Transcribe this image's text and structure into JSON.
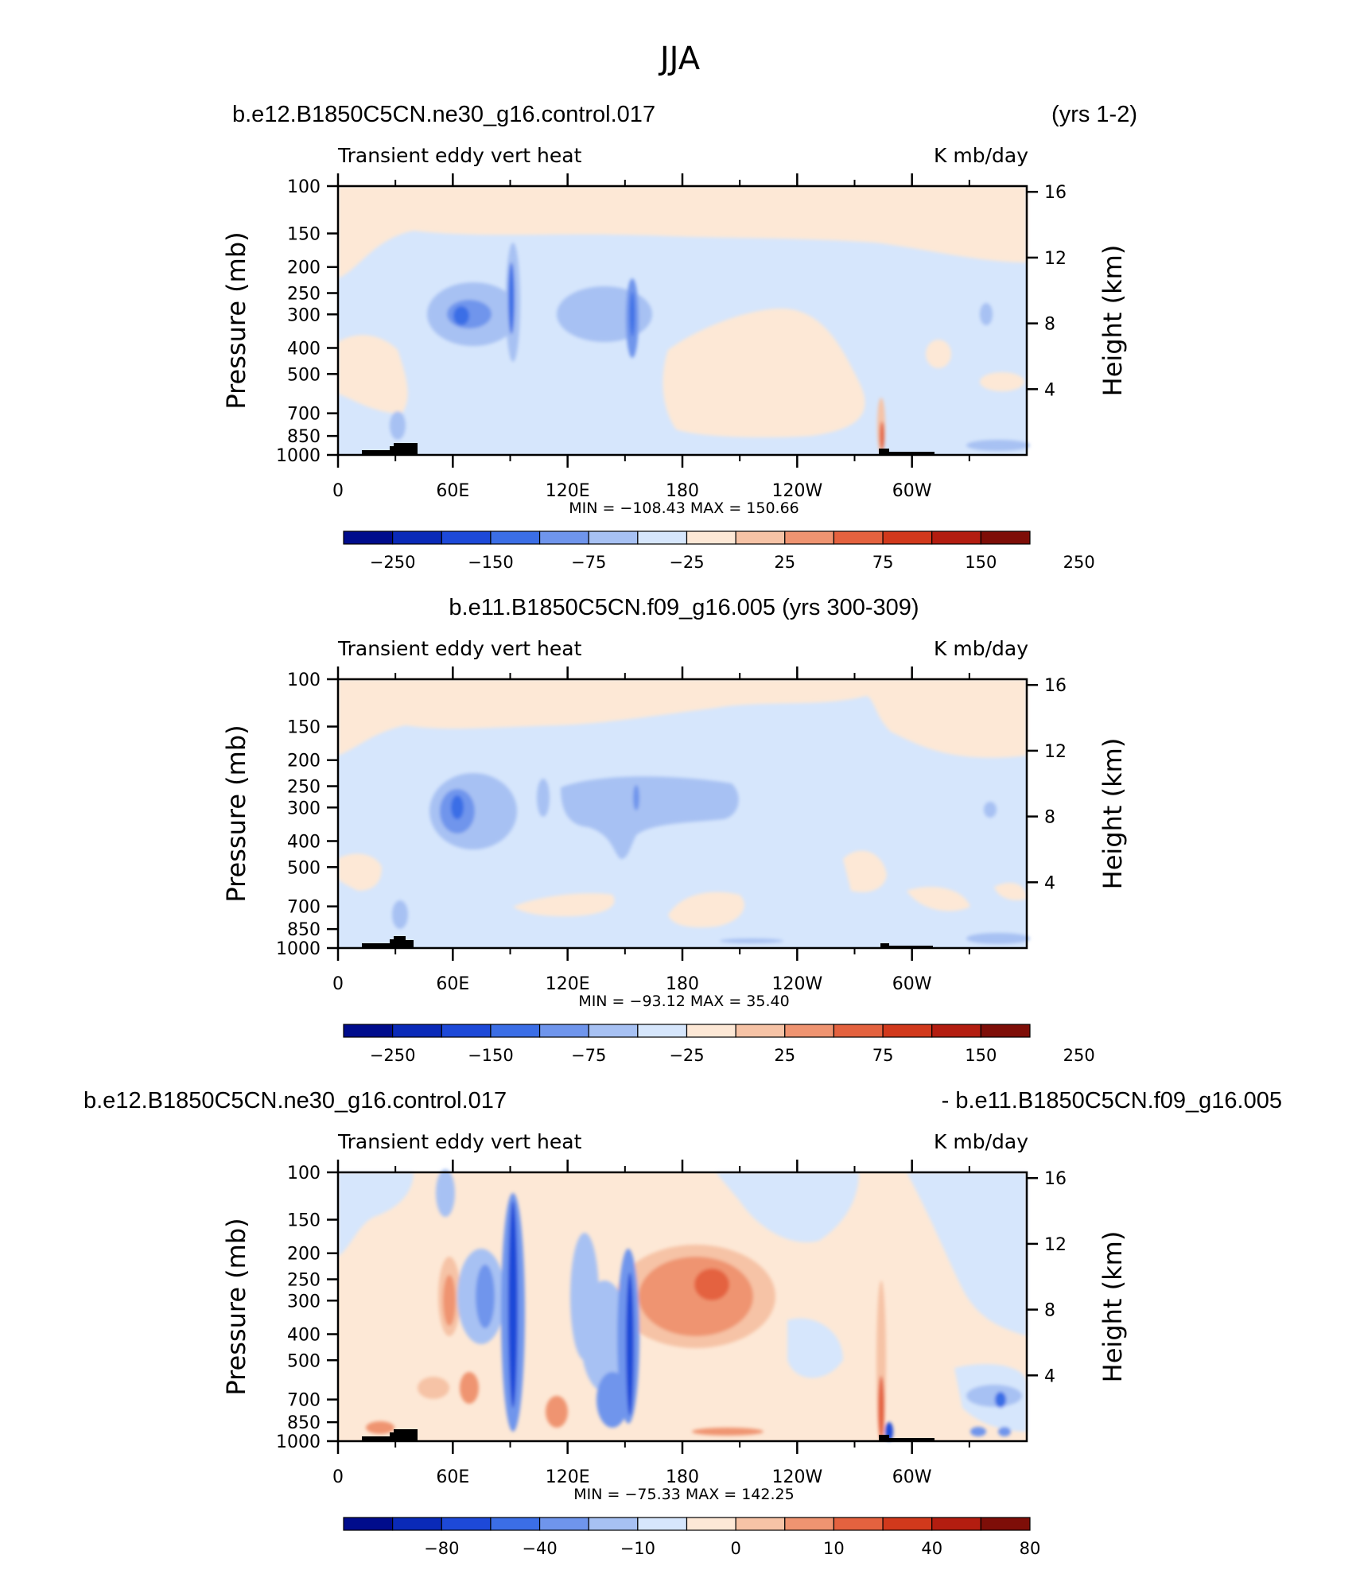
{
  "figure_title": "JJA",
  "colors": {
    "cbar": [
      "#000c8c",
      "#0a2ab8",
      "#1d49d8",
      "#3b6ee6",
      "#6f95ec",
      "#a7c1f3",
      "#d6e6fc",
      "#fde8d6",
      "#f6c3a6",
      "#ef9471",
      "#e4623f",
      "#d1391c",
      "#b31d10",
      "#7e0e08"
    ],
    "land": "#000000"
  },
  "chart_data": [
    {
      "type": "heatmap",
      "title_left": "b.e12.B1850C5CN.ne30_g16.control.017",
      "title_right": "(yrs 1-2)",
      "subtitle": "Transient eddy vert heat",
      "units": "K mb/day",
      "ylabel": "Pressure (mb)",
      "ylabel_right": "Height (km)",
      "xticks": [
        "0",
        "60E",
        "120E",
        "180",
        "120W",
        "60W"
      ],
      "yticks": [
        "100",
        "150",
        "200",
        "250",
        "300",
        "400",
        "500",
        "700",
        "850",
        "1000"
      ],
      "yticks_right": [
        "16",
        "12",
        "8",
        "4"
      ],
      "ylim": [
        1000,
        100
      ],
      "minmax": "MIN = −108.43   MAX = 150.66",
      "min": -108.43,
      "max": 150.66,
      "colorbar_labels": [
        "−250",
        "−150",
        "−75",
        "−25",
        "25",
        "75",
        "150",
        "250"
      ],
      "features": [
        {
          "lon": 70,
          "p": 300,
          "val": -108
        },
        {
          "lon": 90,
          "p": 300,
          "val": -80
        },
        {
          "lon": 150,
          "p": 300,
          "val": -60
        },
        {
          "lon": 290,
          "p": 850,
          "val": 150
        }
      ]
    },
    {
      "type": "heatmap",
      "title_left": "b.e11.B1850C5CN.f09_g16.005 (yrs 300-309)",
      "title_right": "",
      "subtitle": "Transient eddy vert heat",
      "units": "K mb/day",
      "ylabel": "Pressure (mb)",
      "ylabel_right": "Height (km)",
      "xticks": [
        "0",
        "60E",
        "120E",
        "180",
        "120W",
        "60W"
      ],
      "yticks": [
        "100",
        "150",
        "200",
        "250",
        "300",
        "400",
        "500",
        "700",
        "850",
        "1000"
      ],
      "yticks_right": [
        "16",
        "12",
        "8",
        "4"
      ],
      "ylim": [
        1000,
        100
      ],
      "minmax": "MIN = −93.12   MAX =   35.40",
      "min": -93.12,
      "max": 35.4,
      "colorbar_labels": [
        "−250",
        "−150",
        "−75",
        "−25",
        "25",
        "75",
        "150",
        "250"
      ],
      "features": [
        {
          "lon": 65,
          "p": 300,
          "val": -93
        },
        {
          "lon": 150,
          "p": 300,
          "val": -40
        }
      ]
    },
    {
      "type": "heatmap",
      "title_left": "b.e12.B1850C5CN.ne30_g16.control.017",
      "title_right": "- b.e11.B1850C5CN.f09_g16.005",
      "subtitle": "Transient eddy vert heat",
      "units": "K mb/day",
      "ylabel": "Pressure (mb)",
      "ylabel_right": "Height (km)",
      "xticks": [
        "0",
        "60E",
        "120E",
        "180",
        "120W",
        "60W"
      ],
      "yticks": [
        "100",
        "150",
        "200",
        "250",
        "300",
        "400",
        "500",
        "700",
        "850",
        "1000"
      ],
      "yticks_right": [
        "16",
        "12",
        "8",
        "4"
      ],
      "ylim": [
        1000,
        100
      ],
      "minmax": "MIN = −75.33   MAX = 142.25",
      "min": -75.33,
      "max": 142.25,
      "colorbar_labels": [
        "−80",
        "−40",
        "−10",
        "0",
        "10",
        "40",
        "80"
      ],
      "features": [
        {
          "lon": 90,
          "p": 400,
          "val": -75
        },
        {
          "lon": 150,
          "p": 500,
          "val": -60
        },
        {
          "lon": 195,
          "p": 300,
          "val": 50
        },
        {
          "lon": 290,
          "p": 850,
          "val": 142
        }
      ]
    }
  ]
}
